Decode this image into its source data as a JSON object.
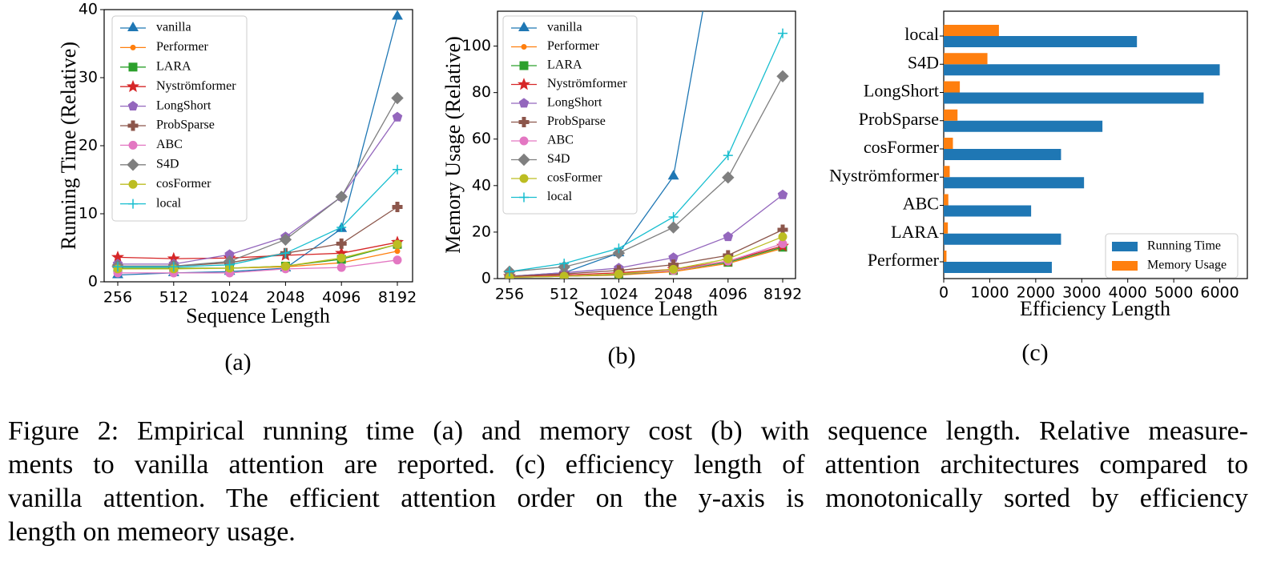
{
  "chart_data": [
    {
      "type": "line",
      "label": "(a)",
      "xlabel": "Sequence Length",
      "ylabel": "Running Time (Relative)",
      "categories": [
        "256",
        "512",
        "1024",
        "2048",
        "4096",
        "8192"
      ],
      "ylim": [
        0,
        40
      ],
      "yticks": [
        0,
        10,
        20,
        30,
        40
      ],
      "legend": "upper left",
      "series": [
        {
          "name": "vanilla",
          "color": "#1f77b4",
          "marker": "triangle",
          "values": [
            1,
            1.3,
            1.5,
            2,
            7.8,
            39
          ]
        },
        {
          "name": "Performer",
          "color": "#ff7f0e",
          "marker": "point",
          "values": [
            2,
            2,
            2,
            2.2,
            2.8,
            4.5
          ]
        },
        {
          "name": "LARA",
          "color": "#2ca02c",
          "marker": "square",
          "values": [
            2,
            2,
            2,
            2.3,
            3.3,
            5.5
          ]
        },
        {
          "name": "Nyströmformer",
          "color": "#d62728",
          "marker": "star",
          "values": [
            3.6,
            3.4,
            3.5,
            3.9,
            4.2,
            5.8
          ]
        },
        {
          "name": "LongShort",
          "color": "#9467bd",
          "marker": "pentagon",
          "values": [
            2.6,
            2.6,
            4,
            6.6,
            12.5,
            24.2
          ]
        },
        {
          "name": "ProbSparse",
          "color": "#8c564b",
          "marker": "plus-filled",
          "values": [
            2.3,
            2.3,
            2.8,
            4.2,
            5.6,
            11
          ]
        },
        {
          "name": "ABC",
          "color": "#e377c2",
          "marker": "circle",
          "values": [
            1.3,
            1.3,
            1.3,
            1.9,
            2.1,
            3.2
          ]
        },
        {
          "name": "S4D",
          "color": "#7f7f7f",
          "marker": "diamond",
          "values": [
            2.3,
            2.3,
            3,
            6.2,
            12.5,
            27
          ]
        },
        {
          "name": "cosFormer",
          "color": "#bcbd22",
          "marker": "circle",
          "values": [
            1.9,
            1.9,
            2,
            2.3,
            3.5,
            5.5
          ]
        },
        {
          "name": "local",
          "color": "#17becf",
          "marker": "plus",
          "values": [
            2.2,
            2.2,
            2.5,
            4.2,
            8,
            16.5
          ]
        }
      ]
    },
    {
      "type": "line",
      "label": "(b)",
      "xlabel": "Sequence Length",
      "ylabel": "Memory Usage (Relative)",
      "categories": [
        "256",
        "512",
        "1024",
        "2048",
        "4096",
        "8192"
      ],
      "ylim": [
        0,
        115
      ],
      "yticks": [
        0,
        20,
        40,
        60,
        80,
        100
      ],
      "legend": "upper left",
      "series": [
        {
          "name": "vanilla",
          "color": "#1f77b4",
          "marker": "triangle",
          "values": [
            1,
            2.5,
            11,
            44,
            176,
            null
          ]
        },
        {
          "name": "Performer",
          "color": "#ff7f0e",
          "marker": "point",
          "values": [
            0.5,
            1,
            1.5,
            3,
            6.5,
            13
          ]
        },
        {
          "name": "LARA",
          "color": "#2ca02c",
          "marker": "square",
          "values": [
            0.5,
            1,
            1.8,
            3.5,
            7,
            13.5
          ]
        },
        {
          "name": "Nyströmformer",
          "color": "#d62728",
          "marker": "star",
          "values": [
            1,
            1.5,
            2.5,
            4,
            7.5,
            14
          ]
        },
        {
          "name": "LongShort",
          "color": "#9467bd",
          "marker": "pentagon",
          "values": [
            1,
            2.5,
            4.5,
            9,
            18,
            36
          ]
        },
        {
          "name": "ProbSparse",
          "color": "#8c564b",
          "marker": "plus-filled",
          "values": [
            1,
            2,
            3.5,
            6,
            10,
            21
          ]
        },
        {
          "name": "ABC",
          "color": "#e377c2",
          "marker": "circle",
          "values": [
            0.5,
            1,
            2,
            3.5,
            7.5,
            15
          ]
        },
        {
          "name": "S4D",
          "color": "#7f7f7f",
          "marker": "diamond",
          "values": [
            3,
            5,
            11,
            22,
            43.5,
            87
          ]
        },
        {
          "name": "cosFormer",
          "color": "#bcbd22",
          "marker": "circle",
          "values": [
            0.5,
            1,
            2,
            4,
            8.5,
            18
          ]
        },
        {
          "name": "local",
          "color": "#17becf",
          "marker": "plus",
          "values": [
            3,
            6.5,
            13,
            26.5,
            53,
            105.5
          ]
        }
      ]
    },
    {
      "type": "barh",
      "label": "(c)",
      "xlabel": "Efficiency Length",
      "categories": [
        "local",
        "S4D",
        "LongShort",
        "ProbSparse",
        "cosFormer",
        "Nyströmformer",
        "ABC",
        "LARA",
        "Performer"
      ],
      "xlim": [
        0,
        6600
      ],
      "xticks": [
        0,
        1000,
        2000,
        3000,
        4000,
        5000,
        6000
      ],
      "legend": "lower right",
      "series": [
        {
          "name": "Running Time",
          "color": "#1f77b4",
          "values": [
            4200,
            6000,
            5650,
            3450,
            2550,
            3050,
            1900,
            2550,
            2350
          ]
        },
        {
          "name": "Memory Usage",
          "color": "#ff7f0e",
          "values": [
            1200,
            950,
            350,
            300,
            200,
            130,
            100,
            90,
            60
          ]
        }
      ]
    }
  ],
  "caption": [
    "Figure 2: Empirical running time (a) and memory cost (b) with sequence length. Relative measure-",
    "ments to vanilla attention are reported. (c) efficiency length of attention architectures compared to",
    "vanilla attention. The efficient attention order on the y-axis is monotonically sorted by efficiency",
    "length on memeory usage."
  ]
}
